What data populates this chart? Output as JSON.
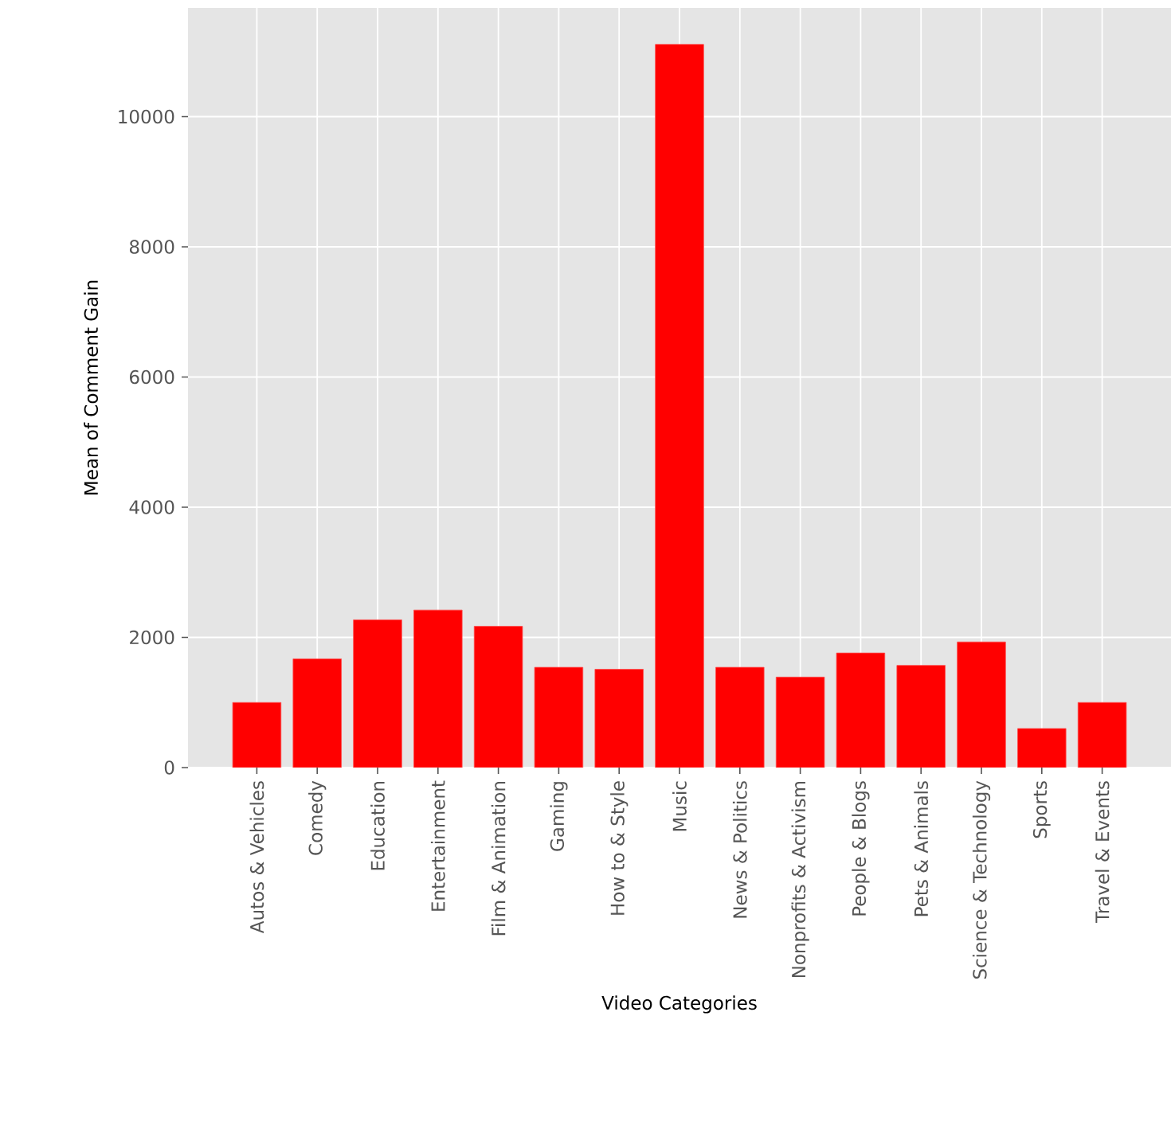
{
  "chart_data": {
    "type": "bar",
    "xlabel": "Video Categories",
    "ylabel": "Mean of Comment Gain",
    "categories": [
      "Autos & Vehicles",
      "Comedy",
      "Education",
      "Entertainment",
      "Film & Animation",
      "Gaming",
      "How to & Style",
      "Music",
      "News & Politics",
      "Nonprofits & Activism",
      "People & Blogs",
      "Pets & Animals",
      "Science & Technology",
      "Sports",
      "Travel & Events"
    ],
    "values": [
      1000,
      1670,
      2270,
      2420,
      2170,
      1540,
      1510,
      11110,
      1540,
      1390,
      1760,
      1570,
      1930,
      600,
      1000
    ],
    "color": "#ff0000",
    "ylim": [
      0,
      11670
    ],
    "yticks": [
      0,
      2000,
      4000,
      6000,
      8000,
      10000
    ],
    "grid": true
  }
}
